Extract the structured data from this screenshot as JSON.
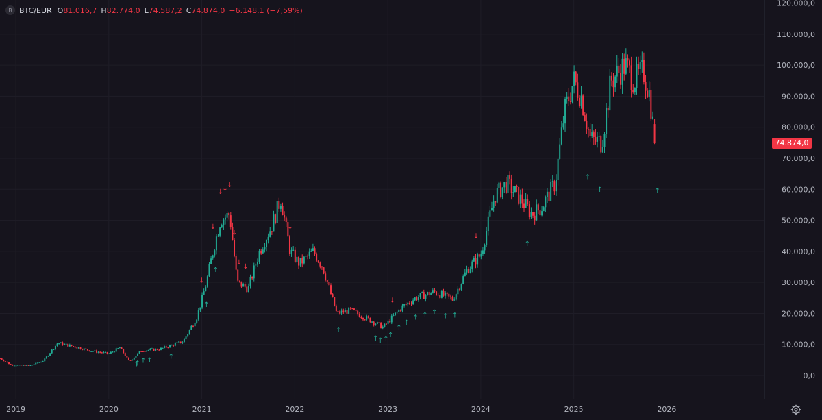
{
  "legend": {
    "logo": "B",
    "symbol": "BTC/EUR",
    "o_label": "O",
    "o_value": "81.016,7",
    "h_label": "H",
    "h_value": "82.774,0",
    "l_label": "L",
    "l_value": "74.587,2",
    "c_label": "C",
    "c_value": "74.874,0",
    "change": "−6.148,1 (−7,59%)"
  },
  "colors": {
    "up": "#22ab94",
    "down": "#f23645",
    "background": "#16141d",
    "axis_text": "#b2b5be",
    "grid": "#1f1d27"
  },
  "settings_icon": "gear-icon",
  "chart_data": {
    "type": "candlestick",
    "title": "",
    "y_ticks": [
      "120.000,0",
      "110.000,0",
      "100.000,0",
      "90.000,0",
      "80.000,0",
      "70.000,0",
      "60.000,0",
      "50.000,0",
      "40.000,0",
      "30.000,0",
      "20.000,0",
      "10.000,0",
      "0,0"
    ],
    "y_tick_values": [
      120000,
      110000,
      100000,
      90000,
      80000,
      70000,
      60000,
      50000,
      40000,
      30000,
      20000,
      10000,
      0
    ],
    "x_ticks": [
      "2019",
      "2020",
      "2021",
      "2022",
      "2023",
      "2024",
      "2025",
      "2026"
    ],
    "x_tick_values": [
      2019,
      2020,
      2021,
      2022,
      2023,
      2024,
      2025,
      2026
    ],
    "ylim": [
      -7500,
      121000
    ],
    "xlim": [
      2018.83,
      2027.05
    ],
    "last_price": 74874,
    "last_price_label": "74.874,0",
    "price_keypoints": [
      [
        2018.83,
        5500
      ],
      [
        2018.95,
        3400
      ],
      [
        2019.15,
        3200
      ],
      [
        2019.3,
        4800
      ],
      [
        2019.45,
        10500
      ],
      [
        2019.6,
        9500
      ],
      [
        2019.8,
        8000
      ],
      [
        2020.0,
        7000
      ],
      [
        2020.12,
        9000
      ],
      [
        2020.22,
        4500
      ],
      [
        2020.35,
        8000
      ],
      [
        2020.55,
        8500
      ],
      [
        2020.8,
        11000
      ],
      [
        2020.95,
        19000
      ],
      [
        2021.05,
        30000
      ],
      [
        2021.12,
        40000
      ],
      [
        2021.2,
        50000
      ],
      [
        2021.3,
        52000
      ],
      [
        2021.38,
        30000
      ],
      [
        2021.5,
        28000
      ],
      [
        2021.62,
        40000
      ],
      [
        2021.75,
        48000
      ],
      [
        2021.85,
        57000
      ],
      [
        2021.95,
        40000
      ],
      [
        2022.05,
        36000
      ],
      [
        2022.2,
        40000
      ],
      [
        2022.3,
        35000
      ],
      [
        2022.45,
        20000
      ],
      [
        2022.6,
        21000
      ],
      [
        2022.8,
        18000
      ],
      [
        2022.95,
        15500
      ],
      [
        2023.15,
        22000
      ],
      [
        2023.3,
        25000
      ],
      [
        2023.5,
        27000
      ],
      [
        2023.7,
        24500
      ],
      [
        2023.85,
        34000
      ],
      [
        2024.0,
        39000
      ],
      [
        2024.15,
        58000
      ],
      [
        2024.28,
        62000
      ],
      [
        2024.45,
        56000
      ],
      [
        2024.55,
        52000
      ],
      [
        2024.65,
        54000
      ],
      [
        2024.8,
        62000
      ],
      [
        2024.9,
        85000
      ],
      [
        2025.0,
        95000
      ],
      [
        2025.08,
        90000
      ],
      [
        2025.18,
        76000
      ],
      [
        2025.3,
        75000
      ],
      [
        2025.4,
        95000
      ],
      [
        2025.55,
        100000
      ],
      [
        2025.65,
        95000
      ],
      [
        2025.75,
        98000
      ],
      [
        2025.82,
        90000
      ],
      [
        2025.87,
        74874
      ]
    ],
    "up_signals_x": [
      2020.3,
      2020.31,
      2020.37,
      2020.44,
      2020.67,
      2021.05,
      2021.15,
      2022.47,
      2022.87,
      2022.92,
      2022.98,
      2023.03,
      2023.12,
      2023.2,
      2023.3,
      2023.4,
      2023.5,
      2023.62,
      2023.72,
      2024.5,
      2025.15,
      2025.28,
      2025.9
    ],
    "down_signals_x": [
      2021.0,
      2021.12,
      2021.2,
      2021.25,
      2021.3,
      2021.35,
      2021.4,
      2021.47,
      2021.95,
      2023.05,
      2023.95
    ]
  }
}
